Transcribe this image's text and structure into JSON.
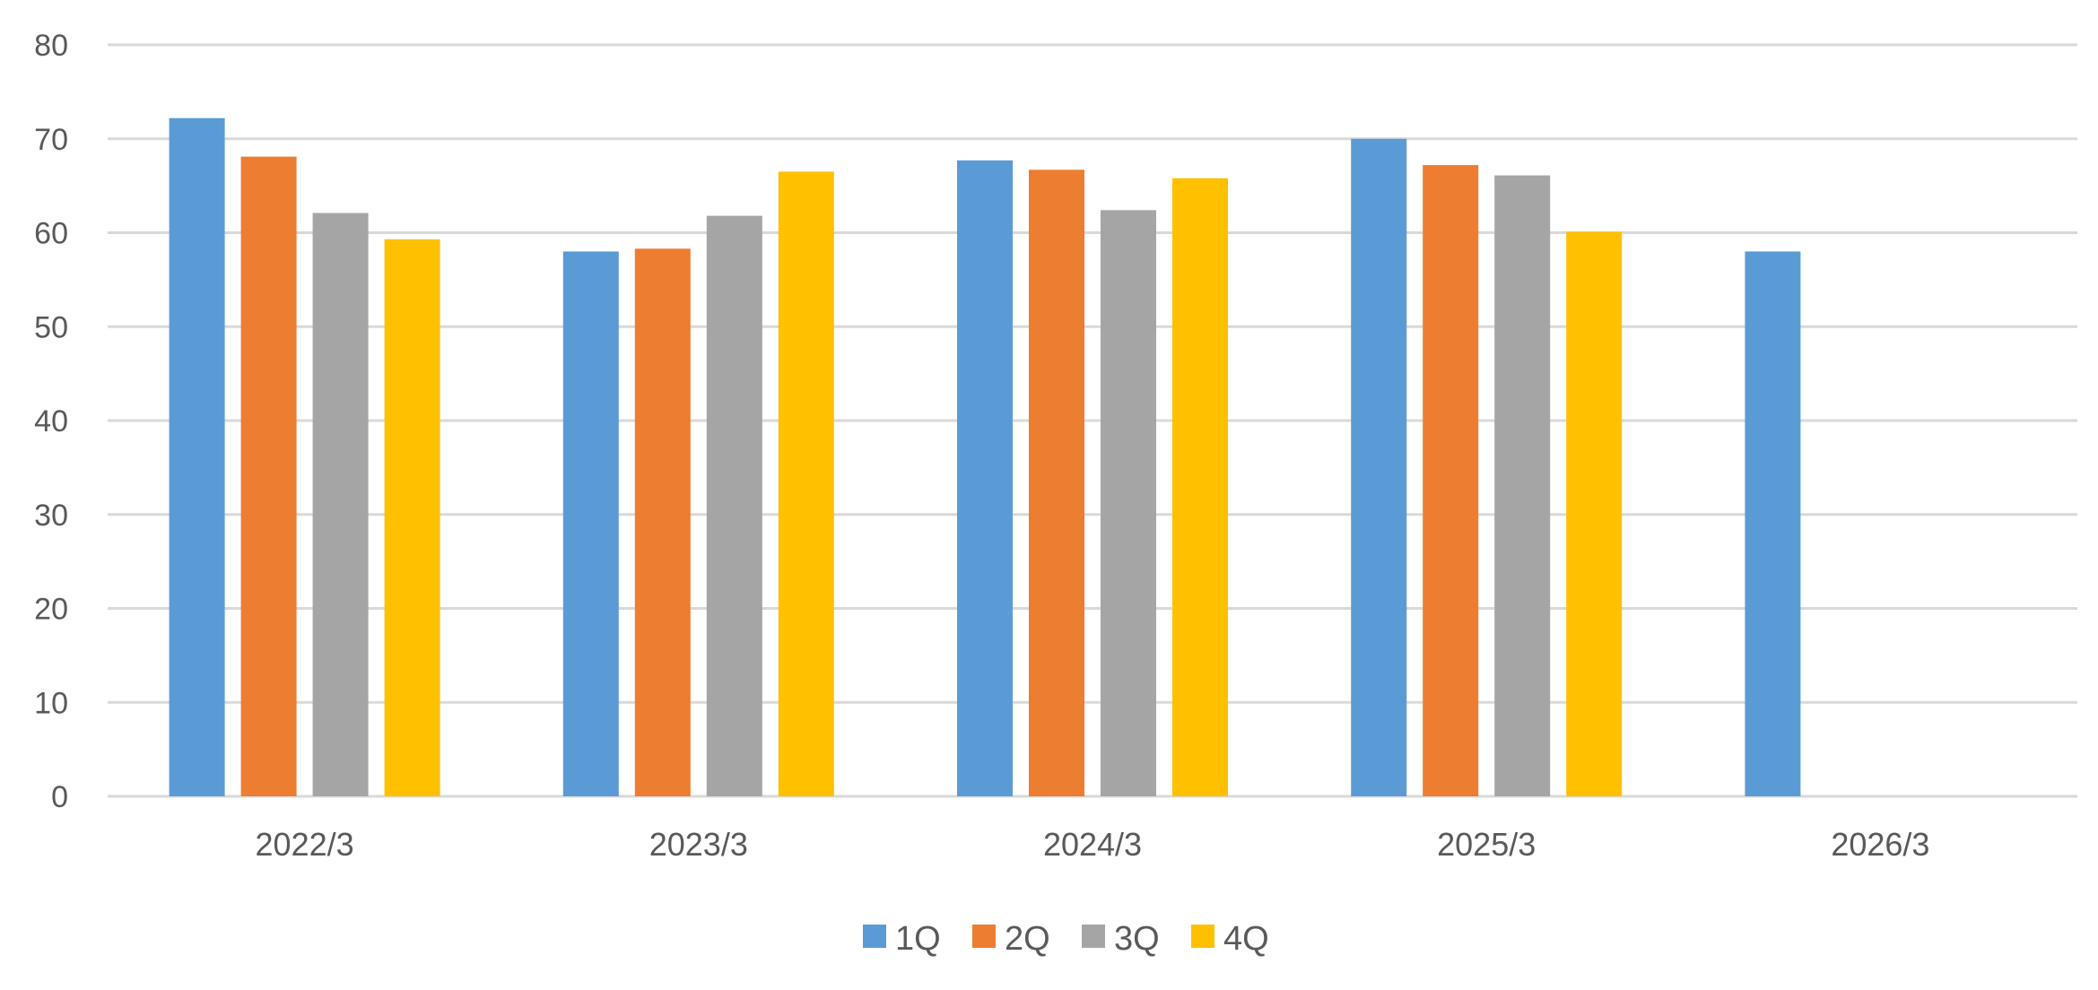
{
  "chart_data": {
    "type": "bar",
    "title": "",
    "xlabel": "",
    "ylabel": "",
    "categories": [
      "2022/3",
      "2023/3",
      "2024/3",
      "2025/3",
      "2026/3"
    ],
    "series": [
      {
        "name": "1Q",
        "color": "#5B9BD5",
        "values": [
          72.2,
          58.0,
          67.7,
          70.0,
          58.0
        ]
      },
      {
        "name": "2Q",
        "color": "#ED7D31",
        "values": [
          68.1,
          58.3,
          66.7,
          67.2,
          null
        ]
      },
      {
        "name": "3Q",
        "color": "#A5A5A5",
        "values": [
          62.1,
          61.8,
          62.4,
          66.1,
          null
        ]
      },
      {
        "name": "4Q",
        "color": "#FFC000",
        "values": [
          59.3,
          66.5,
          65.8,
          60.1,
          null
        ]
      }
    ],
    "ylim": [
      0,
      80
    ],
    "yticks": [
      0,
      10,
      20,
      30,
      40,
      50,
      60,
      70,
      80
    ],
    "grid": true,
    "legend": "bottom-center"
  }
}
